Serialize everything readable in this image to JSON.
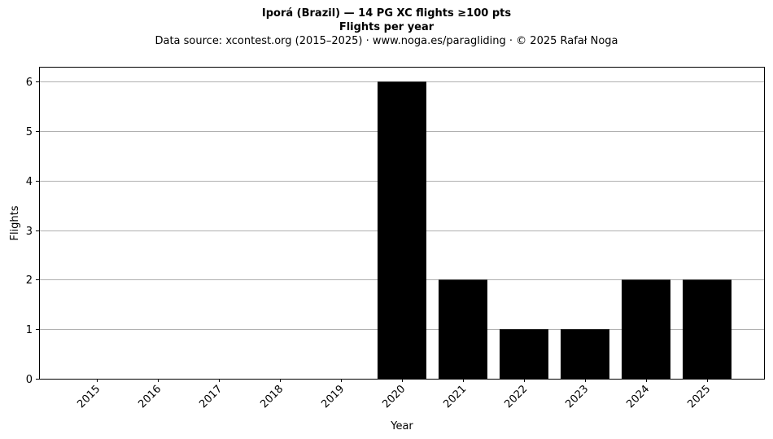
{
  "header": {
    "title": "Iporá (Brazil)  —  14 PG XC flights ≥100 pts",
    "subtitle": "Flights per year",
    "source": "Data source: xcontest.org (2015–2025)  ·  www.noga.es/paragliding  ·  © 2025 Rafał Noga"
  },
  "chart_data": {
    "type": "bar",
    "title": "Iporá (Brazil)  —  14 PG XC flights ≥100 pts",
    "subtitle": "Flights per year",
    "xlabel": "Year",
    "ylabel": "Flights",
    "categories": [
      "2015",
      "2016",
      "2017",
      "2018",
      "2019",
      "2020",
      "2021",
      "2022",
      "2023",
      "2024",
      "2025"
    ],
    "values": [
      0,
      0,
      0,
      0,
      0,
      6,
      2,
      1,
      1,
      2,
      2
    ],
    "ylim": [
      0,
      6.3
    ],
    "yticks": [
      0,
      1,
      2,
      3,
      4,
      5,
      6
    ],
    "grid": "y",
    "bar_color": "#000000",
    "grid_color": "#b0b0b0"
  }
}
